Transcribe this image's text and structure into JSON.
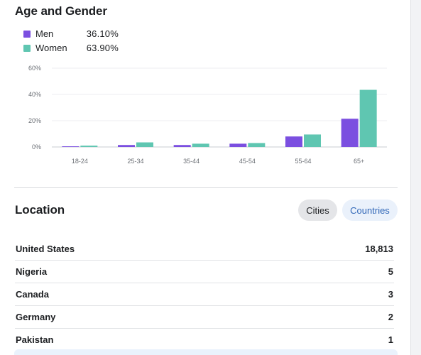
{
  "age_gender": {
    "title": "Age and Gender",
    "legend": [
      {
        "label": "Men",
        "value": "36.10%",
        "color": "#7b4fe0"
      },
      {
        "label": "Women",
        "value": "63.90%",
        "color": "#5fc6b1"
      }
    ]
  },
  "chart_data": {
    "type": "bar",
    "categories": [
      "18-24",
      "25-34",
      "35-44",
      "45-54",
      "55-64",
      "65+"
    ],
    "series": [
      {
        "name": "Men",
        "color": "#7b4fe0",
        "values": [
          0.5,
          1.5,
          1.5,
          2.5,
          8,
          21.5
        ]
      },
      {
        "name": "Women",
        "color": "#5fc6b1",
        "values": [
          1,
          3.5,
          2.5,
          3,
          9.5,
          43.5
        ]
      }
    ],
    "ylim": [
      0,
      60
    ],
    "yticks": [
      0,
      20,
      40,
      60
    ],
    "ytick_labels": [
      "0%",
      "20%",
      "40%",
      "60%"
    ],
    "grid": true,
    "title": "",
    "xlabel": "",
    "ylabel": ""
  },
  "location": {
    "title": "Location",
    "tabs": {
      "cities": "Cities",
      "countries": "Countries"
    },
    "rows": [
      {
        "name": "United States",
        "value": "18,813"
      },
      {
        "name": "Nigeria",
        "value": "5"
      },
      {
        "name": "Canada",
        "value": "3"
      },
      {
        "name": "Germany",
        "value": "2"
      },
      {
        "name": "Pakistan",
        "value": "1"
      }
    ]
  }
}
